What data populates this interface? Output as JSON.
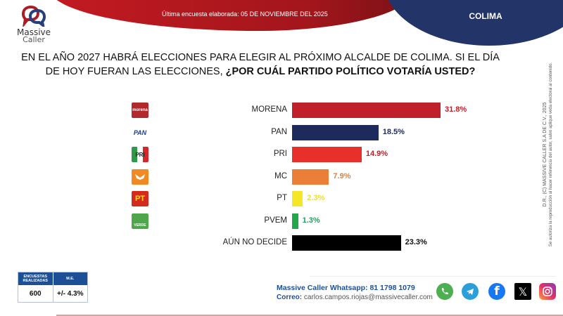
{
  "header": {
    "date_text": "Última encuesta elaborada: 05 DE NOVIEMBRE DEL 2025",
    "state": "COLIMA",
    "brand_line1": "Massive",
    "brand_line2": "Caller"
  },
  "question": {
    "normal": "EN EL AÑO 2027 HABRÁ ELECCIONES PARA ELEGIR AL PRÓXIMO ALCALDE DE COLIMA. SI EL DÍA DE HOY FUERAN LAS ELECCIONES, ",
    "bold": "¿POR CUÁL PARTIDO POLÍTICO VOTARÍA USTED?"
  },
  "copyright": {
    "line1": "D.R., (C) MASSIVE CALLER S.A DE C.V., 2025",
    "line2": "Se autoriza la reproducción al hacer referencia del autor, salvo aplique veda electoral al contenido."
  },
  "chart_data": {
    "type": "bar",
    "orientation": "horizontal",
    "title": "¿POR CUÁL PARTIDO POLÍTICO VOTARÍA USTED?",
    "xlabel": "",
    "ylabel": "",
    "unit": "%",
    "grid": false,
    "categories": [
      "MORENA",
      "PAN",
      "PRI",
      "MC",
      "PT",
      "PVEM",
      "AÚN NO DECIDE"
    ],
    "values": [
      31.8,
      18.5,
      14.9,
      7.9,
      2.3,
      1.3,
      23.3
    ],
    "labels": [
      "31.8%",
      "18.5%",
      "14.9%",
      "7.9%",
      "2.3%",
      "1.3%",
      "23.3%"
    ],
    "bar_colors": [
      "#c0202a",
      "#1f2a5c",
      "#e8302a",
      "#ec7f37",
      "#f5e626",
      "#22a84a",
      "#000000"
    ],
    "label_colors": [
      "#c0202a",
      "#1f2a5c",
      "#c0202a",
      "#d9823f",
      "#e9df3a",
      "#22a060",
      "#111111"
    ],
    "party_logos": [
      {
        "icon": "morena-logo",
        "text": "morena",
        "bg": "#b3282d"
      },
      {
        "icon": "pan-logo",
        "text": "PAN",
        "bg": "#ffffff"
      },
      {
        "icon": "pri-logo",
        "text": "PRI",
        "bg": "#ffffff"
      },
      {
        "icon": "mc-logo",
        "text": "",
        "bg": "#f08a24"
      },
      {
        "icon": "pt-logo",
        "text": "PT",
        "bg": "#d62a1e"
      },
      {
        "icon": "pvem-logo",
        "text": "VERDE",
        "bg": "#4ea64a"
      },
      {
        "icon": "",
        "text": "",
        "bg": ""
      }
    ],
    "xlim": [
      0,
      35
    ]
  },
  "stats": {
    "h1": "ENCUESTAS REALIZADAS",
    "h2": "M.E.",
    "v1": "600",
    "v2": "+/- 4.3%"
  },
  "contact": {
    "whatsapp_label": "Massive Caller Whatsapp: 81 1798 1079",
    "email_label": "Correo: ",
    "email": "carlos.campos.riojas@massivecaller.com"
  },
  "social": [
    "whatsapp",
    "telegram",
    "facebook",
    "x",
    "instagram"
  ]
}
